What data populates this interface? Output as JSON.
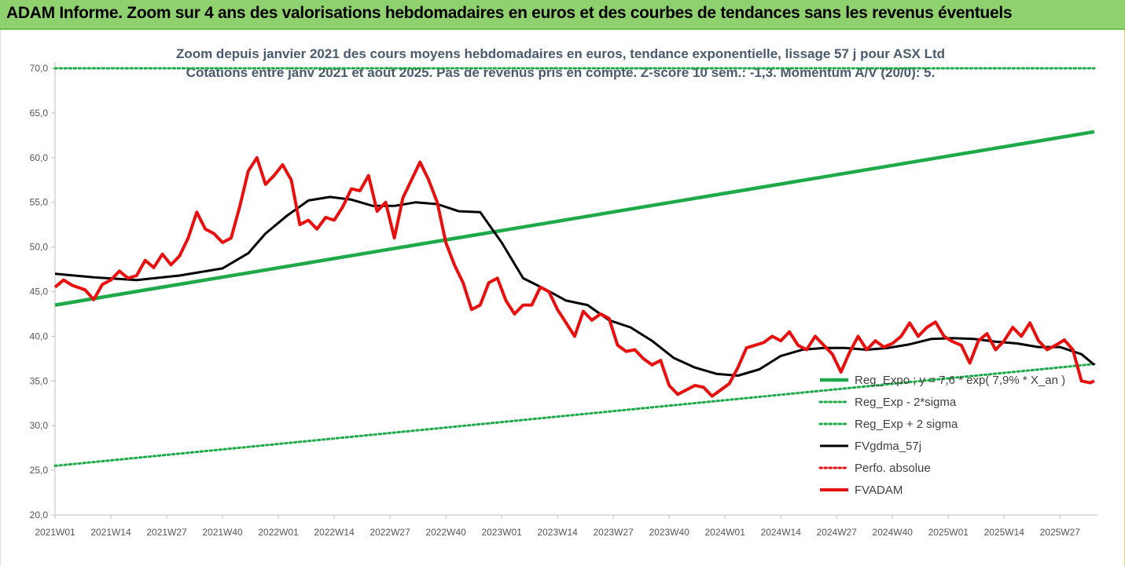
{
  "banner": {
    "title": "ADAM Informe. Zoom sur 4 ans des valorisations hebdomadaires en euros et des courbes de tendances sans les revenus éventuels"
  },
  "colors": {
    "banner_bg": "#8fd16f",
    "reg": "#1faa4a",
    "price": "#e8100f",
    "ma": "#000000",
    "title": "#4a5a6e"
  },
  "chart_data": {
    "type": "line",
    "title_lines": [
      "Zoom depuis janvier 2021 des cours moyens hebdomadaires en euros, tendance exponentielle, lissage 57 j pour ASX Ltd",
      "Cotations entre janv 2021 et août 2025. Pas de revenus pris en compte. Z-score 10 sem.: -1,3. Momentum A/V (20/0): 5."
    ],
    "x_tick_labels": [
      "2021W01",
      "2021W14",
      "2021W27",
      "2021W40",
      "2022W01",
      "2022W14",
      "2022W27",
      "2022W40",
      "2023W01",
      "2023W14",
      "2023W27",
      "2023W40",
      "2024W01",
      "2024W14",
      "2024W27",
      "2024W40",
      "2025W01",
      "2025W14",
      "2025W27"
    ],
    "y_tick_labels": [
      "20,0",
      "25,0",
      "30,0",
      "35,0",
      "40,0",
      "45,0",
      "50,0",
      "55,0",
      "60,0",
      "65,0",
      "70,0"
    ],
    "ylim": [
      20,
      70
    ],
    "x_count_weeks": 243,
    "legend_position": "right-middle",
    "legend": [
      {
        "name": "Reg_Expo ; y = 7,6 * exp( 7,9% * X_an )",
        "style": "solid-green"
      },
      {
        "name": "Reg_Exp - 2*sigma",
        "style": "dotted-green"
      },
      {
        "name": "Reg_Exp + 2 sigma",
        "style": "dotted-green"
      },
      {
        "name": "FVgdma_57j",
        "style": "solid-black"
      },
      {
        "name": "Perfo. absolue",
        "style": "dotted-red"
      },
      {
        "name": "FVADAM",
        "style": "solid-red"
      }
    ],
    "series": [
      {
        "name": "Reg_Expo ; y = 7,6 * exp( 7,9% * X_an )",
        "x": [
          1,
          243
        ],
        "y": [
          43.5,
          62.9
        ]
      },
      {
        "name": "Reg_Exp - 2*sigma",
        "x": [
          1,
          243
        ],
        "y": [
          25.5,
          36.9
        ]
      },
      {
        "name": "Reg_Exp + 2 sigma",
        "x": [
          1,
          243
        ],
        "y": [
          70.0,
          70.0
        ]
      },
      {
        "name": "FVgdma_57j",
        "x": [
          1,
          10,
          20,
          30,
          40,
          46,
          50,
          55,
          60,
          65,
          70,
          75,
          80,
          85,
          90,
          95,
          100,
          105,
          110,
          115,
          120,
          125,
          130,
          135,
          140,
          145,
          150,
          155,
          160,
          165,
          170,
          175,
          180,
          185,
          190,
          195,
          200,
          205,
          210,
          215,
          220,
          225,
          230,
          235,
          240,
          243
        ],
        "y": [
          47.0,
          46.6,
          46.3,
          46.8,
          47.6,
          49.3,
          51.5,
          53.5,
          55.2,
          55.6,
          55.3,
          54.6,
          54.6,
          55.0,
          54.8,
          54.0,
          53.9,
          50.5,
          46.5,
          45.3,
          44.0,
          43.5,
          41.8,
          41.0,
          39.5,
          37.6,
          36.5,
          35.8,
          35.6,
          36.3,
          37.8,
          38.5,
          38.7,
          38.7,
          38.5,
          38.7,
          39.1,
          39.7,
          39.8,
          39.7,
          39.4,
          39.2,
          38.8,
          38.8,
          38.0,
          36.8
        ]
      },
      {
        "name": "FVADAM",
        "x": [
          1,
          3,
          5,
          8,
          10,
          12,
          14,
          16,
          18,
          20,
          22,
          24,
          26,
          28,
          30,
          32,
          34,
          36,
          38,
          40,
          42,
          44,
          46,
          48,
          50,
          52,
          54,
          56,
          58,
          60,
          62,
          64,
          66,
          68,
          70,
          72,
          74,
          76,
          78,
          80,
          82,
          84,
          86,
          88,
          90,
          92,
          94,
          96,
          98,
          100,
          102,
          104,
          106,
          108,
          110,
          112,
          114,
          116,
          118,
          120,
          122,
          124,
          126,
          128,
          130,
          132,
          134,
          136,
          138,
          140,
          142,
          144,
          146,
          148,
          150,
          152,
          154,
          156,
          158,
          160,
          162,
          164,
          166,
          168,
          170,
          172,
          174,
          176,
          178,
          180,
          182,
          184,
          186,
          188,
          190,
          192,
          194,
          196,
          198,
          200,
          202,
          204,
          206,
          208,
          210,
          212,
          214,
          216,
          218,
          220,
          222,
          224,
          226,
          228,
          230,
          232,
          234,
          236,
          238,
          240,
          242,
          243
        ],
        "y": [
          45.5,
          46.3,
          45.7,
          45.2,
          44.1,
          45.8,
          46.3,
          47.3,
          46.5,
          46.8,
          48.5,
          47.7,
          49.2,
          48.0,
          49.0,
          51.0,
          53.9,
          52.0,
          51.5,
          50.5,
          51.0,
          54.5,
          58.5,
          60.0,
          57.0,
          58.0,
          59.2,
          57.5,
          52.5,
          53.0,
          52.0,
          53.3,
          53.0,
          54.5,
          56.5,
          56.3,
          58.0,
          54.0,
          55.0,
          51.0,
          55.5,
          57.5,
          59.5,
          57.5,
          55.0,
          50.5,
          48.0,
          46.0,
          43.0,
          43.5,
          46.0,
          46.5,
          44.0,
          42.5,
          43.5,
          43.5,
          45.5,
          45.0,
          43.0,
          41.5,
          40.0,
          42.8,
          41.8,
          42.5,
          42.0,
          39.0,
          38.3,
          38.5,
          37.5,
          36.8,
          37.3,
          34.5,
          33.5,
          34.0,
          34.5,
          34.3,
          33.3,
          34.0,
          34.7,
          36.5,
          38.7,
          39.0,
          39.3,
          40.0,
          39.5,
          40.5,
          39.0,
          38.5,
          40.0,
          39.0,
          38.0,
          36.0,
          38.2,
          40.0,
          38.5,
          39.5,
          38.8,
          39.2,
          40.0,
          41.5,
          40.0,
          41.0,
          41.6,
          40.0,
          39.4,
          39.0,
          37.0,
          39.5,
          40.3,
          38.5,
          39.5,
          41.0,
          40.0,
          41.5,
          39.5,
          38.5,
          39.0,
          39.6,
          38.5,
          35.0,
          34.8,
          35.0
        ]
      }
    ]
  }
}
